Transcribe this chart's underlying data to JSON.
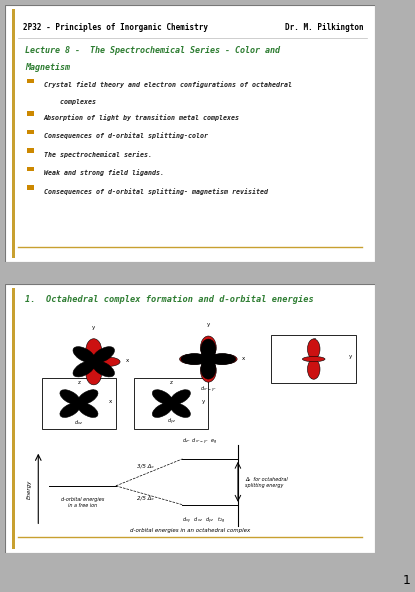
{
  "outer_bg": "#b0b0b0",
  "slide_bg": "#ffffff",
  "border_color": "#888888",
  "gold_bar": "#c8a030",
  "divider_color": "#c8a030",
  "slide1": {
    "header": "2P32 - Principles of Inorganic Chemistry",
    "header_right": "Dr. M. Pilkington",
    "title_line1": "Lecture 8 -  The Spectrochemical Series - Color and",
    "title_line2": "Magnetism",
    "title_color": "#2e7d32",
    "header_color": "#000000",
    "bullet_marker_color": "#cc8800",
    "bullet_text_color": "#222222",
    "bullets": [
      "Crystal field theory and electron configurations of octahedral",
      "    complexes",
      "Absorption of light by transition metal complexes",
      "Consequences of d-orbital splitting-color",
      "The spectrochemical series.",
      "Weak and strong field ligands.",
      "Consequences of d-orbital splitting- magnetism revisited"
    ]
  },
  "slide2": {
    "title": "1.  Octahedral complex formation and d-orbital energies",
    "title_color": "#2e7d32"
  },
  "page_number": "1"
}
